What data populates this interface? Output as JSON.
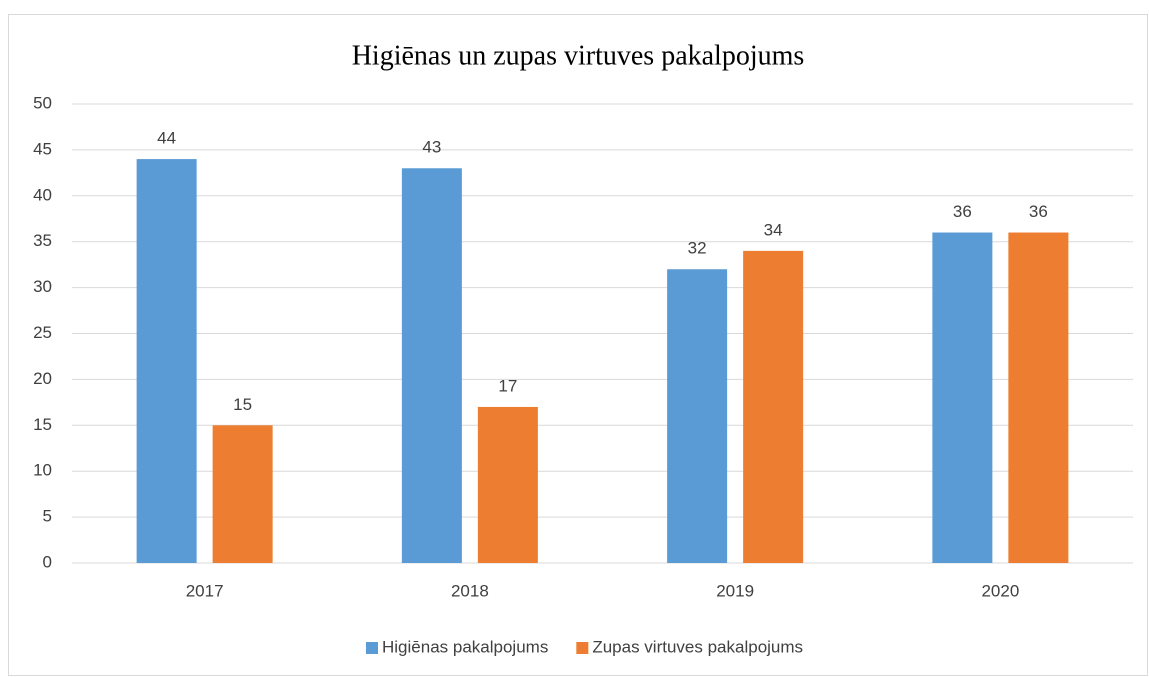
{
  "chart_data": {
    "type": "bar",
    "title": "Higiēnas un zupas virtuves pakalpojums",
    "categories": [
      "2017",
      "2018",
      "2019",
      "2020"
    ],
    "series": [
      {
        "name": "Higiēnas pakalpojums",
        "color": "#5b9bd5",
        "values": [
          44,
          43,
          32,
          36
        ]
      },
      {
        "name": "Zupas virtuves pakalpojums",
        "color": "#ed7d31",
        "values": [
          15,
          17,
          34,
          36
        ]
      }
    ],
    "ylim": [
      0,
      50
    ],
    "yticks": [
      0,
      5,
      10,
      15,
      20,
      25,
      30,
      35,
      40,
      45,
      50
    ],
    "grid": true,
    "legend": "bottom"
  }
}
